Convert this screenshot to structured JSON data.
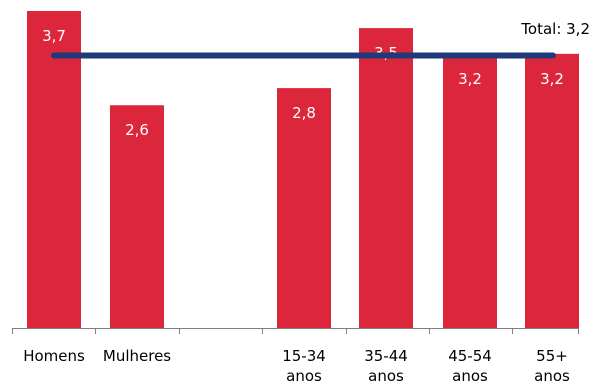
{
  "chart_data": {
    "type": "bar",
    "categories": [
      [
        "Homens"
      ],
      [
        "Mulheres"
      ],
      [],
      [
        "15-34",
        "anos"
      ],
      [
        "35-44",
        "anos"
      ],
      [
        "45-54",
        "anos"
      ],
      [
        "55+",
        "anos"
      ]
    ],
    "values": [
      3.7,
      2.6,
      null,
      2.8,
      3.5,
      3.2,
      3.2
    ],
    "value_labels": [
      "3,7",
      "2,6",
      "",
      "2,8",
      "3,5",
      "3,2",
      "3,2"
    ],
    "ylim": [
      0,
      3.7
    ],
    "total": {
      "value": 3.2,
      "label": "Total: 3,2"
    },
    "grid": false,
    "legend": "none"
  },
  "colors": {
    "bar": "#dc263b",
    "total_line": "#1f3a7a",
    "axis": "#808080"
  }
}
